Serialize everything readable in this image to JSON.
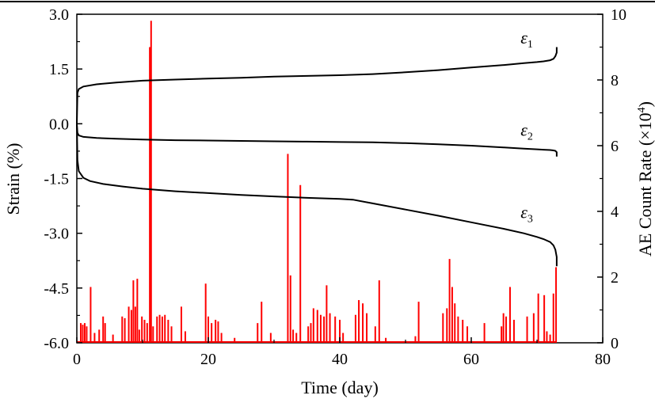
{
  "chart_data": {
    "type": "line",
    "xlabel": "Time  (day)",
    "ylabel_left": "Strain (%)",
    "ylabel_right": "AE Count Rate (×10",
    "ylabel_right_exp": "4",
    "ylabel_right_close": ")",
    "xlim": [
      0,
      80
    ],
    "ylim_left": [
      -6.0,
      3.0
    ],
    "ylim_right": [
      0,
      10
    ],
    "x_ticks": [
      "0",
      "20",
      "40",
      "60",
      "80"
    ],
    "y_left_ticks": [
      "3.0",
      "1.5",
      "0.0",
      "-1.5",
      "-3.0",
      "-4.5",
      "-6.0"
    ],
    "y_right_ticks": [
      "10",
      "8",
      "6",
      "4",
      "2",
      "0"
    ],
    "colors": {
      "strain": "#000000",
      "ae": "#ff0000",
      "top_line": "#000000"
    },
    "series": [
      {
        "name": "ε1",
        "label_symbol": "ε",
        "label_sub": "1",
        "axis": "left",
        "x": [
          0,
          0.1,
          0.3,
          1,
          3,
          6,
          10,
          15,
          20,
          25,
          30,
          35,
          40,
          45,
          50,
          55,
          60,
          65,
          68,
          70,
          71,
          72,
          72.5,
          72.8,
          73,
          73
        ],
        "y": [
          0.0,
          0.85,
          0.95,
          1.02,
          1.08,
          1.13,
          1.18,
          1.21,
          1.24,
          1.26,
          1.29,
          1.31,
          1.33,
          1.36,
          1.41,
          1.47,
          1.54,
          1.61,
          1.66,
          1.69,
          1.71,
          1.74,
          1.78,
          1.85,
          1.95,
          2.1
        ]
      },
      {
        "name": "ε2",
        "label_symbol": "ε",
        "label_sub": "2",
        "axis": "left",
        "x": [
          0,
          0.1,
          0.3,
          1,
          3,
          6,
          10,
          15,
          20,
          25,
          30,
          35,
          40,
          45,
          50,
          55,
          60,
          65,
          68,
          70,
          71,
          72,
          72.5,
          72.8,
          73,
          73
        ],
        "y": [
          0.0,
          -0.25,
          -0.32,
          -0.36,
          -0.39,
          -0.41,
          -0.43,
          -0.45,
          -0.46,
          -0.47,
          -0.48,
          -0.49,
          -0.5,
          -0.51,
          -0.53,
          -0.56,
          -0.6,
          -0.65,
          -0.68,
          -0.7,
          -0.71,
          -0.72,
          -0.73,
          -0.74,
          -0.78,
          -0.9
        ]
      },
      {
        "name": "ε3",
        "label_symbol": "ε",
        "label_sub": "3",
        "axis": "left",
        "x": [
          0,
          0.1,
          0.3,
          1,
          2,
          4,
          7,
          10,
          15,
          20,
          25,
          30,
          35,
          40,
          42,
          45,
          50,
          55,
          60,
          65,
          68,
          70,
          71,
          72,
          72.5,
          72.8,
          73,
          73
        ],
        "y": [
          0.0,
          -1.0,
          -1.3,
          -1.48,
          -1.57,
          -1.65,
          -1.72,
          -1.78,
          -1.85,
          -1.9,
          -1.95,
          -1.99,
          -2.03,
          -2.06,
          -2.08,
          -2.18,
          -2.35,
          -2.52,
          -2.7,
          -2.88,
          -3.0,
          -3.1,
          -3.16,
          -3.24,
          -3.33,
          -3.45,
          -3.65,
          -3.9
        ]
      },
      {
        "name": "AE count rate",
        "axis": "right",
        "type": "bar",
        "x": [
          0.6,
          0.9,
          1.2,
          1.5,
          2.1,
          2.7,
          3.4,
          4.0,
          4.3,
          5.5,
          6.9,
          7.3,
          7.9,
          8.3,
          8.6,
          8.9,
          9.2,
          9.5,
          9.9,
          10.3,
          10.7,
          11.1,
          11.3,
          11.6,
          12.2,
          12.6,
          13.0,
          13.4,
          13.9,
          14.4,
          15.9,
          16.5,
          19.6,
          20.0,
          20.5,
          21.1,
          21.5,
          22.0,
          24.0,
          27.5,
          28.1,
          29.5,
          32.1,
          32.5,
          32.9,
          33.4,
          34.0,
          35.2,
          35.6,
          36.0,
          36.6,
          37.1,
          37.6,
          38.0,
          38.5,
          39.3,
          40.0,
          40.5,
          42.4,
          42.9,
          43.5,
          44.1,
          45.4,
          46.0,
          47.0,
          51.5,
          52.0,
          55.7,
          56.3,
          56.7,
          57.1,
          57.5,
          58.0,
          58.7,
          59.4,
          62.0,
          64.6,
          64.9,
          65.3,
          65.9,
          66.5,
          68.5,
          69.5,
          70.2,
          71.1,
          71.5,
          72.0,
          72.5,
          72.9
        ],
        "y": [
          0.6,
          0.55,
          0.6,
          0.5,
          1.7,
          0.3,
          0.4,
          0.8,
          0.6,
          0.25,
          0.8,
          0.75,
          1.1,
          1.0,
          1.9,
          1.1,
          1.95,
          0.4,
          0.8,
          0.7,
          0.6,
          9.0,
          9.8,
          0.5,
          0.8,
          0.85,
          0.8,
          0.85,
          0.7,
          0.5,
          1.1,
          0.35,
          1.8,
          0.8,
          0.6,
          0.7,
          0.65,
          0.3,
          0.15,
          0.6,
          1.25,
          0.3,
          5.75,
          2.05,
          0.4,
          0.3,
          4.8,
          0.5,
          0.6,
          1.05,
          1.0,
          0.85,
          0.8,
          1.75,
          0.9,
          0.8,
          0.7,
          0.3,
          0.85,
          1.3,
          1.2,
          0.9,
          0.5,
          1.9,
          0.15,
          0.2,
          1.25,
          0.9,
          1.05,
          2.55,
          1.7,
          1.2,
          0.8,
          0.7,
          0.5,
          0.6,
          0.5,
          0.9,
          0.8,
          1.7,
          0.7,
          0.8,
          0.9,
          1.5,
          1.45,
          0.35,
          0.25,
          1.5,
          2.3
        ]
      }
    ],
    "annotations": [
      {
        "symbol": "ε",
        "sub": "1",
        "x": 67.5,
        "y": 2.2
      },
      {
        "symbol": "ε",
        "sub": "2",
        "x": 67.5,
        "y": -0.33
      },
      {
        "symbol": "ε",
        "sub": "3",
        "x": 67.5,
        "y": -2.58
      }
    ]
  }
}
